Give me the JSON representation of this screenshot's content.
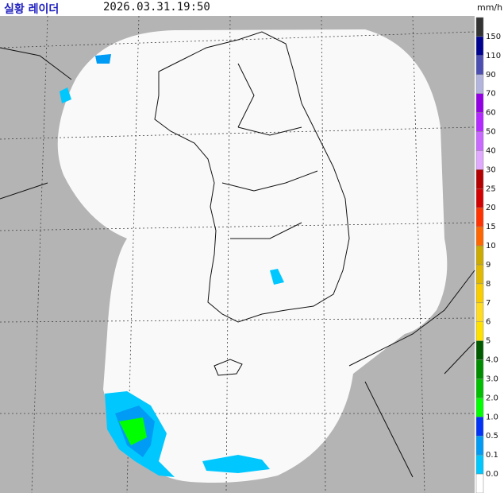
{
  "header": {
    "title": "실황 레이더",
    "time": "2026.03.31.19:50"
  },
  "legend": {
    "unit": "mm/h",
    "cap_color": "#333333",
    "items": [
      {
        "label": "150",
        "color": "#000390"
      },
      {
        "label": "110",
        "color": "#4c4eb1"
      },
      {
        "label": "90",
        "color": "#b3b4de"
      },
      {
        "label": "70",
        "color": "#9300e4"
      },
      {
        "label": "60",
        "color": "#b329ff"
      },
      {
        "label": "50",
        "color": "#c969ff"
      },
      {
        "label": "40",
        "color": "#e0a9ff"
      },
      {
        "label": "30",
        "color": "#b40000"
      },
      {
        "label": "25",
        "color": "#d20000"
      },
      {
        "label": "20",
        "color": "#ff3200"
      },
      {
        "label": "15",
        "color": "#ff6600"
      },
      {
        "label": "10",
        "color": "#ccaa00"
      },
      {
        "label": "9",
        "color": "#e0b900"
      },
      {
        "label": "8",
        "color": "#f9cd00"
      },
      {
        "label": "7",
        "color": "#ffdc1f"
      },
      {
        "label": "6",
        "color": "#ffe100"
      },
      {
        "label": "5",
        "color": "#005a00"
      },
      {
        "label": "4.0",
        "color": "#008c00"
      },
      {
        "label": "3.0",
        "color": "#00be00"
      },
      {
        "label": "2.0",
        "color": "#00ff00"
      },
      {
        "label": "1.0",
        "color": "#0033f5"
      },
      {
        "label": "0.5",
        "color": "#009bf5"
      },
      {
        "label": "0.1",
        "color": "#00c8ff"
      },
      {
        "label": "0.0",
        "color": "#ffffff"
      }
    ]
  }
}
